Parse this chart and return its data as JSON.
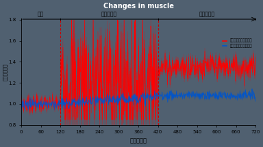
{
  "title": "Changes in muscle",
  "title_color": "#FFFFFF",
  "xlabel": "時間［秒］",
  "ylabel": "僧帽筋血流量",
  "xlim": [
    0,
    720
  ],
  "ylim": [
    0.8,
    1.8
  ],
  "yticks": [
    0.8,
    1.0,
    1.2,
    1.4,
    1.6,
    1.8
  ],
  "xticks": [
    0,
    60,
    120,
    180,
    240,
    300,
    360,
    420,
    480,
    540,
    600,
    660,
    720
  ],
  "phase1_end": 120,
  "phase2_end": 420,
  "phase_labels": [
    "安静",
    "手技療法中",
    "手技療法後"
  ],
  "red_legend": "手技療法を施した条件",
  "blue_legend": "手技療法をしない条件",
  "background_color": "#506070",
  "plot_bg_color": "#506070",
  "red_color": "#FF0000",
  "blue_color": "#0055CC",
  "red_mean_rest": 1.0,
  "red_std_rest": 0.04,
  "red_mean_during_low": 1.2,
  "red_std_during": 0.35,
  "red_mean_after": 1.35,
  "red_std_after": 0.06,
  "blue_mean_rest": 1.0,
  "blue_std_rest": 0.025,
  "blue_mean_during": 1.06,
  "blue_std_during": 0.025,
  "blue_mean_after": 1.08,
  "blue_std_after": 0.02,
  "seed": 7
}
